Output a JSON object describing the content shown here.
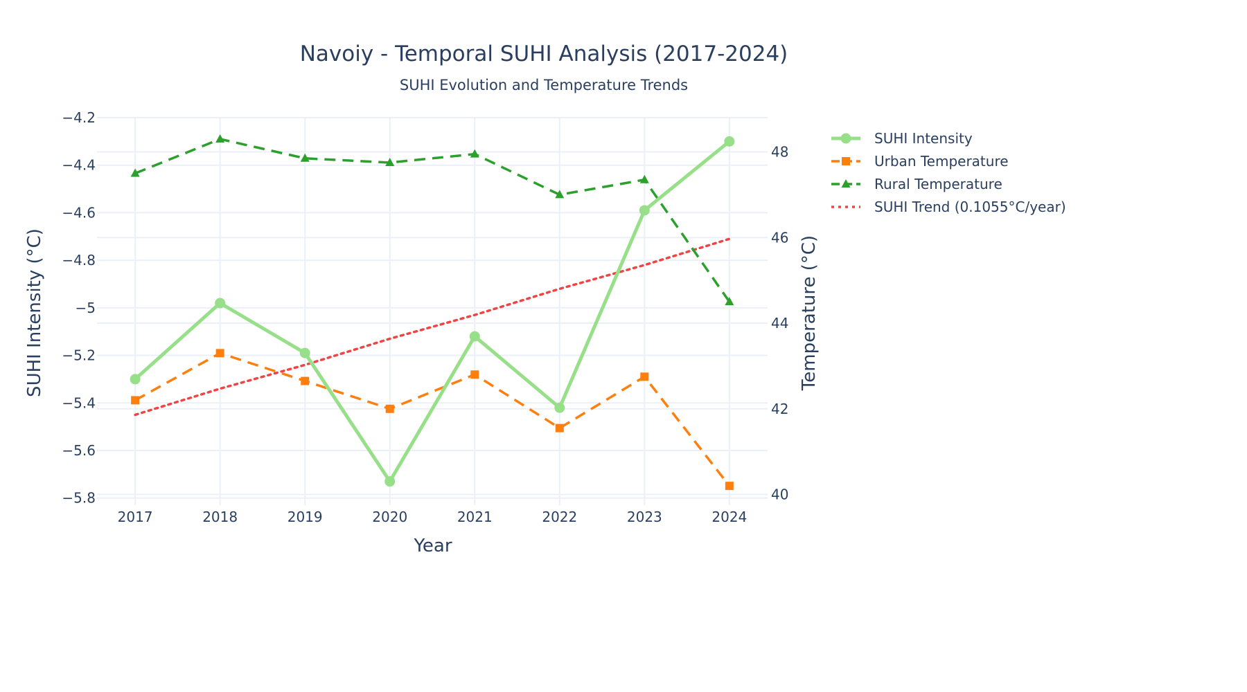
{
  "chart_data": {
    "type": "line",
    "title": "Navoiy - Temporal SUHI Analysis (2017-2024)",
    "subtitle": "SUHI Evolution and Temperature Trends",
    "xlabel": "Year",
    "ylabel_left": "SUHI Intensity (°C)",
    "ylabel_right": "Temperature (°C)",
    "x": [
      2017,
      2018,
      2019,
      2020,
      2021,
      2022,
      2023,
      2024
    ],
    "x_tick_labels": [
      "2017",
      "2018",
      "2019",
      "2020",
      "2021",
      "2022",
      "2023",
      "2024"
    ],
    "xlim": [
      2016.55,
      2024.45
    ],
    "ylim_left": [
      -5.83,
      -4.2
    ],
    "ylim_right": [
      39.75,
      48.8
    ],
    "y_ticks_left": [
      "−5.8",
      "−5.6",
      "−5.4",
      "−5.2",
      "−5",
      "−4.8",
      "−4.6",
      "−4.4",
      "−4.2"
    ],
    "y_ticks_left_values": [
      -5.8,
      -5.6,
      -5.4,
      -5.2,
      -5.0,
      -4.8,
      -4.6,
      -4.4,
      -4.2
    ],
    "y_ticks_right": [
      "40",
      "42",
      "44",
      "46",
      "48"
    ],
    "y_ticks_right_values": [
      40,
      42,
      44,
      46,
      48
    ],
    "grid": true,
    "legend_position": "right",
    "series": [
      {
        "name": "SUHI Intensity",
        "axis": "left",
        "values": [
          -5.3,
          -4.98,
          -5.19,
          -5.73,
          -5.12,
          -5.42,
          -4.59,
          -4.3
        ],
        "color": "#98df8a",
        "marker": "circle",
        "dash": "solid"
      },
      {
        "name": "Urban Temperature",
        "axis": "right",
        "values": [
          42.2,
          43.3,
          42.65,
          42.0,
          42.8,
          41.55,
          42.75,
          40.2
        ],
        "color": "#ff7f0e",
        "marker": "square",
        "dash": "dash"
      },
      {
        "name": "Rural Temperature",
        "axis": "right",
        "values": [
          47.5,
          48.3,
          47.85,
          47.75,
          47.95,
          47.0,
          47.35,
          44.5
        ],
        "color": "#2ca02c",
        "marker": "triangle",
        "dash": "dash"
      },
      {
        "name": "SUHI Trend (0.1055°C/year)",
        "axis": "left",
        "values": [
          -5.45,
          -5.34,
          -5.24,
          -5.13,
          -5.03,
          -4.92,
          -4.82,
          -4.71
        ],
        "color": "#ef4444",
        "marker": "none",
        "dash": "dot"
      }
    ]
  }
}
